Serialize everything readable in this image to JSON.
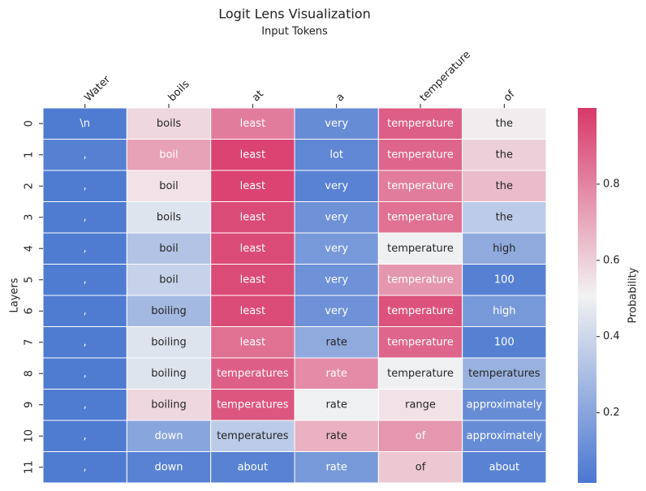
{
  "chart_data": {
    "type": "heatmap",
    "title": "Logit Lens Visualization",
    "x_label": "Input Tokens",
    "y_label": "Layers",
    "colorbar_label": "Probability",
    "x_categories": [
      "Water",
      "boils",
      "at",
      "a",
      "temperature",
      "of"
    ],
    "y_categories": [
      "0",
      "1",
      "2",
      "3",
      "4",
      "5",
      "6",
      "7",
      "8",
      "9",
      "10",
      "11"
    ],
    "values": [
      [
        0.03,
        0.58,
        0.82,
        0.1,
        0.9,
        0.52
      ],
      [
        0.05,
        0.72,
        0.97,
        0.08,
        0.88,
        0.6
      ],
      [
        0.03,
        0.55,
        0.97,
        0.06,
        0.82,
        0.65
      ],
      [
        0.03,
        0.45,
        0.95,
        0.12,
        0.85,
        0.35
      ],
      [
        0.03,
        0.32,
        0.95,
        0.15,
        0.5,
        0.22
      ],
      [
        0.03,
        0.38,
        0.95,
        0.12,
        0.75,
        0.05
      ],
      [
        0.03,
        0.28,
        0.95,
        0.12,
        0.93,
        0.15
      ],
      [
        0.03,
        0.45,
        0.85,
        0.22,
        0.88,
        0.05
      ],
      [
        0.03,
        0.45,
        0.9,
        0.78,
        0.5,
        0.25
      ],
      [
        0.03,
        0.58,
        0.92,
        0.5,
        0.55,
        0.1
      ],
      [
        0.03,
        0.2,
        0.35,
        0.68,
        0.75,
        0.1
      ],
      [
        0.03,
        0.06,
        0.06,
        0.15,
        0.62,
        0.06
      ]
    ],
    "cell_labels": [
      [
        "\\n",
        "boils",
        "least",
        "very",
        "temperature",
        "the"
      ],
      [
        ",",
        "boil",
        "least",
        "lot",
        "temperature",
        "the"
      ],
      [
        ",",
        "boil",
        "least",
        "very",
        "temperature",
        "the"
      ],
      [
        ",",
        "boils",
        "least",
        "very",
        "temperature",
        "the"
      ],
      [
        ",",
        "boil",
        "least",
        "very",
        "temperature",
        "high"
      ],
      [
        ",",
        "boil",
        "least",
        "very",
        "temperature",
        "100"
      ],
      [
        ",",
        "boiling",
        "least",
        "very",
        "temperature",
        "high"
      ],
      [
        ",",
        "boiling",
        "least",
        "rate",
        "temperature",
        "100"
      ],
      [
        ",",
        "boiling",
        "temperatures",
        "rate",
        "temperature",
        "temperatures"
      ],
      [
        ",",
        "boiling",
        "temperatures",
        "rate",
        "range",
        "approximately"
      ],
      [
        ",",
        "down",
        "temperatures",
        "rate",
        "of",
        "approximately"
      ],
      [
        ",",
        "down",
        "about",
        "rate",
        "of",
        "about"
      ]
    ],
    "colorbar_lim": [
      0.016,
      1.0
    ],
    "colorbar_ticks": [
      0.2,
      0.4,
      0.6,
      0.8
    ],
    "colormap": [
      "#4a77d0",
      "#f2f2f2",
      "#d8386a"
    ]
  }
}
